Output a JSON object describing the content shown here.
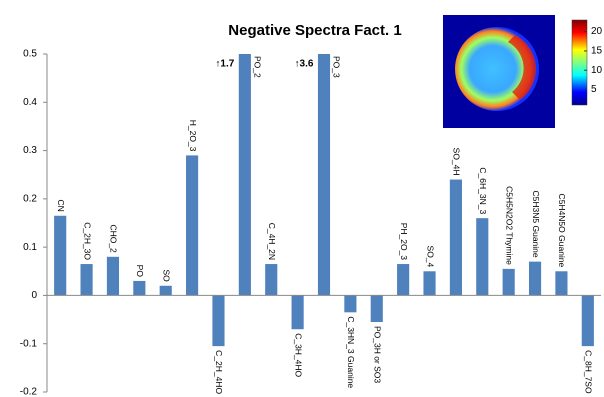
{
  "chart_data": {
    "type": "bar",
    "title": "Negative Spectra Fact. 1",
    "categories": [
      "CN",
      "C_2H_3O",
      "CHO_2",
      "PO",
      "SO",
      "H_2O_3",
      "C_2H_4HO",
      "PO_2",
      "C_4H_2N",
      "C_3H_4HO",
      "PO_3",
      "C_3HN_3 Guanine",
      "PO_3H or SO3",
      "PH_2O_3",
      "SO_4",
      "SO_4H",
      "C_6H_3N_3",
      "C5H5N2O2 Thymine",
      "C5H3N5 Guanine",
      "C5H4N5O Guanine",
      "C_8H_7SO"
    ],
    "values": [
      0.165,
      0.065,
      0.08,
      0.03,
      0.02,
      0.29,
      -0.105,
      1.7,
      0.065,
      -0.07,
      3.6,
      -0.035,
      -0.055,
      0.065,
      0.05,
      0.24,
      0.16,
      0.055,
      0.07,
      0.05,
      -0.105
    ],
    "value_labels": [
      null,
      null,
      null,
      null,
      null,
      null,
      null,
      "↑1.7",
      null,
      null,
      "↑3.6",
      null,
      null,
      null,
      null,
      null,
      null,
      null,
      null,
      null,
      null
    ],
    "color": "#4f81bd",
    "ylim": [
      -0.2,
      0.5
    ],
    "yticks": [
      0.5,
      0.4,
      0.3,
      0.2,
      0.1,
      0,
      -0.1,
      -0.2
    ],
    "grid": false,
    "colorbar": {
      "lim": [
        1,
        23
      ],
      "ticks": [
        20,
        15,
        10,
        5
      ]
    }
  }
}
